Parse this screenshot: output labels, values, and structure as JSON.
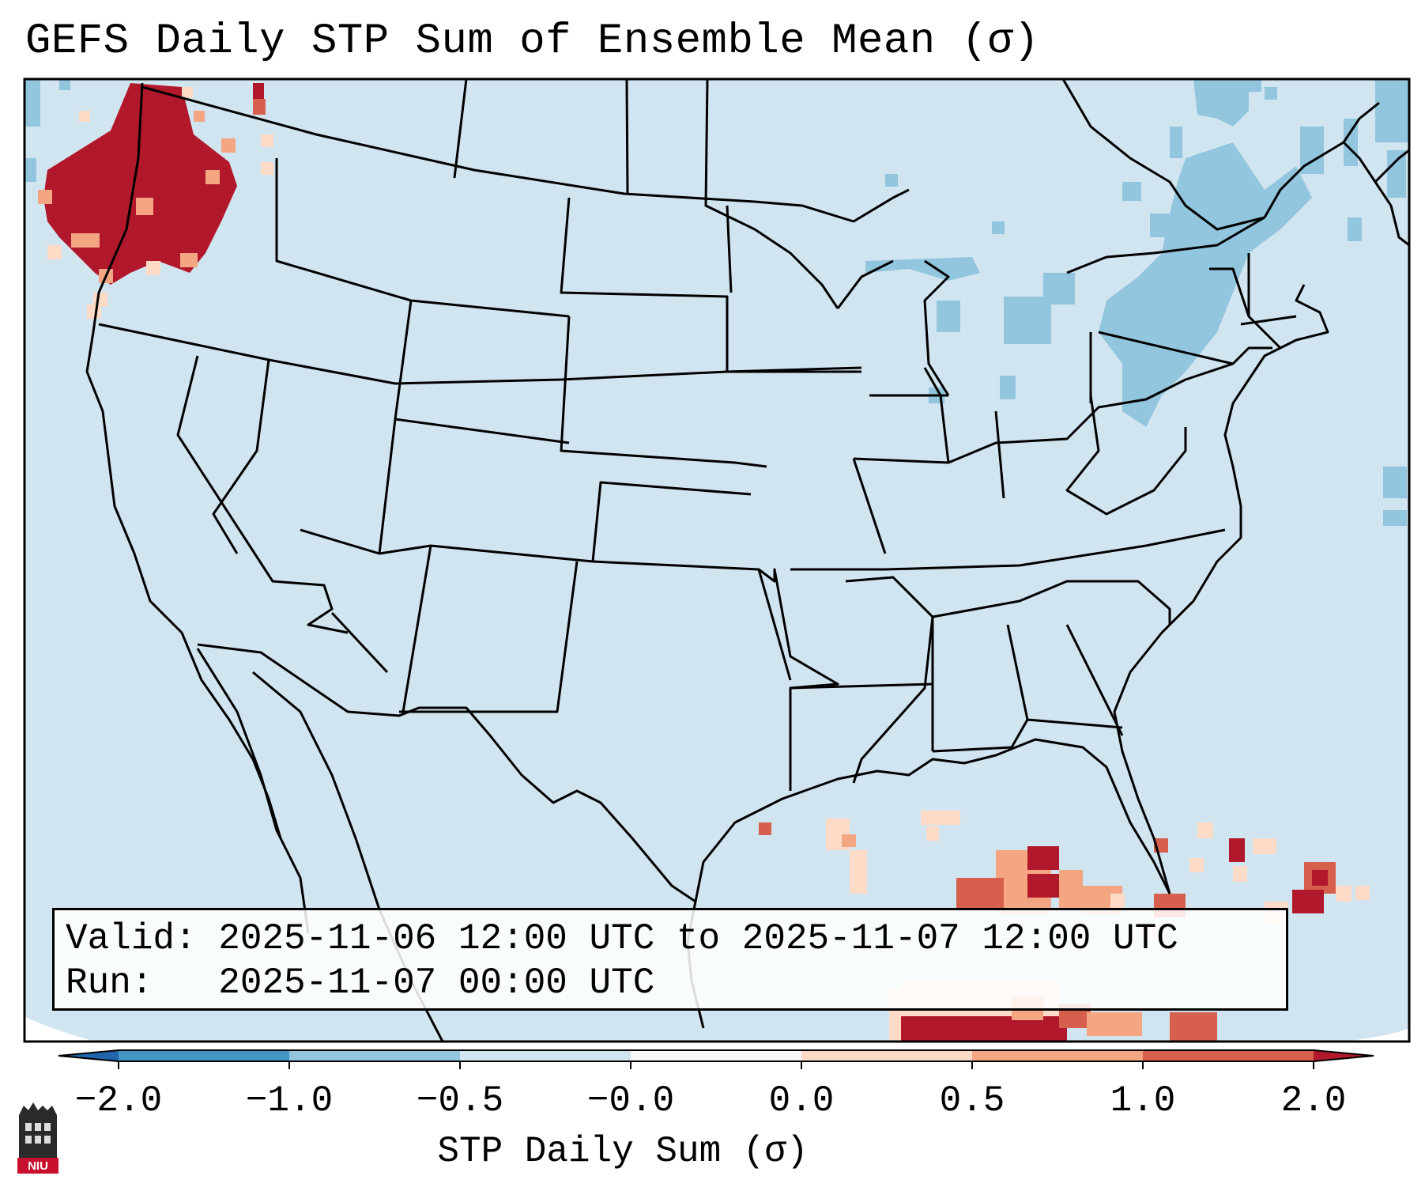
{
  "title": "GEFS Daily STP Sum of Ensemble Mean (σ)",
  "info": {
    "valid_line": "Valid: 2025-11-06 12:00 UTC to 2025-11-07 12:00 UTC",
    "run_line": "Run:   2025-11-07 00:00 UTC"
  },
  "colorbar": {
    "label": "STP Daily Sum (σ)",
    "ticks": [
      "−2.0",
      "−1.0",
      "−0.5",
      "−0.0",
      "0.0",
      "0.5",
      "1.0",
      "2.0"
    ],
    "colors": [
      "#4393c3",
      "#92c5de",
      "#d1e5f0",
      "#f7f7f7",
      "#fddbc7",
      "#f4a582",
      "#d6604d"
    ],
    "under_color": "#2166ac",
    "over_color": "#b2182b"
  },
  "map": {
    "background_color": "#d1e5f0",
    "regions": [
      {
        "name": "pacific-northwest",
        "level": 2.0
      },
      {
        "name": "gulf-of-mexico-cuba",
        "level": 2.0
      },
      {
        "name": "bahamas",
        "level": 2.0
      },
      {
        "name": "great-lakes",
        "level": -0.8
      },
      {
        "name": "northeast-canada",
        "level": -0.8
      }
    ]
  },
  "logo": {
    "text": "NIU"
  }
}
